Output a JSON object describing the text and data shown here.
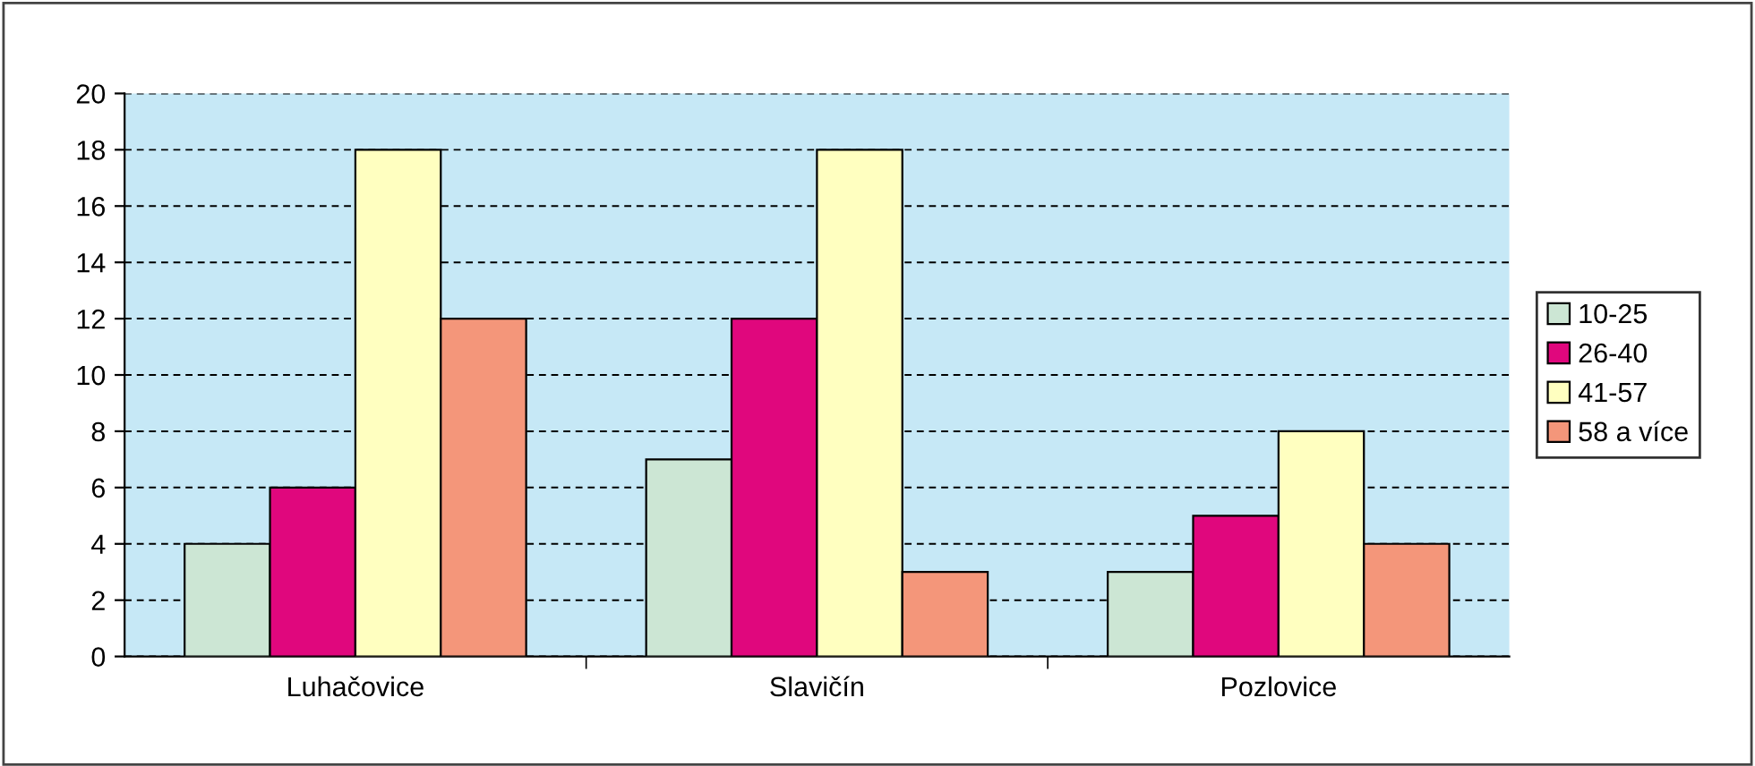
{
  "chart_data": {
    "type": "bar",
    "categories": [
      "Luhačovice",
      "Slavičín",
      "Pozlovice"
    ],
    "series": [
      {
        "name": "10-25",
        "color": "#cce6d4",
        "values": [
          4,
          7,
          3
        ]
      },
      {
        "name": "26-40",
        "color": "#e0077d",
        "values": [
          6,
          12,
          5
        ]
      },
      {
        "name": "41-57",
        "color": "#ffffc0",
        "values": [
          18,
          18,
          8
        ]
      },
      {
        "name": "58 a více",
        "color": "#f4967a",
        "values": [
          12,
          3,
          4
        ]
      }
    ],
    "ylim": [
      0,
      20
    ],
    "yticks": [
      0,
      2,
      4,
      6,
      8,
      10,
      12,
      14,
      16,
      18,
      20
    ],
    "grid": "y",
    "legend": "right"
  }
}
